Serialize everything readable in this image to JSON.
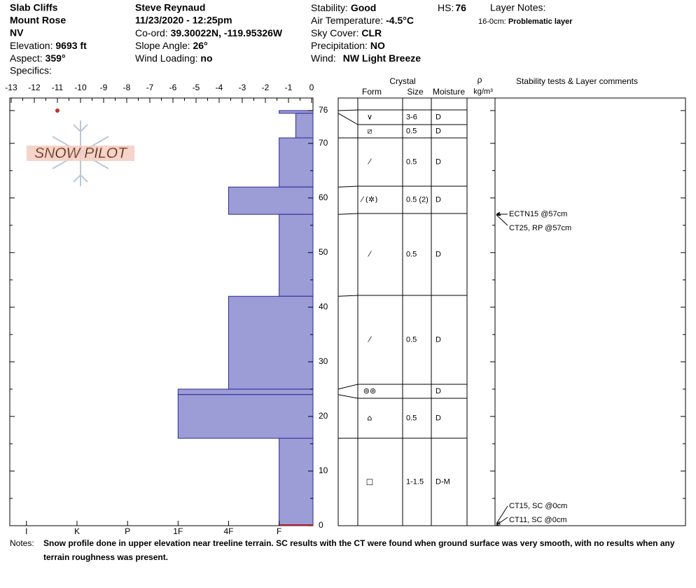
{
  "header": {
    "site": "Slab Cliffs",
    "range": "Mount Rose",
    "state": "NV",
    "elevation": {
      "label": "Elevation:",
      "value": "9693 ft"
    },
    "aspect": {
      "label": "Aspect:",
      "value": "359°"
    },
    "specifics": {
      "label": "Specifics:"
    },
    "observer": "Steve Reynaud",
    "datetime": "11/23/2020 - 12:25pm",
    "coord": {
      "label": "Co-ord:",
      "value": "39.30022N, -119.95326W"
    },
    "slope": {
      "label": "Slope Angle:",
      "value": "26°"
    },
    "wind_loading": {
      "label": "Wind Loading:",
      "value": "no"
    },
    "stability": {
      "label": "Stability:",
      "value": "Good"
    },
    "air_temp": {
      "label": "Air Temperature:",
      "value": "-4.5°C"
    },
    "sky": {
      "label": "Sky Cover:",
      "value": "CLR"
    },
    "precip": {
      "label": "Precipitation:",
      "value": "NO"
    },
    "wind": {
      "label": "Wind:",
      "value": "NW Light Breeze"
    },
    "hs": {
      "label": "HS:",
      "value": 76
    },
    "layer_notes": {
      "label": "Layer Notes:",
      "range": "16-0cm:",
      "text": "Problematic layer"
    }
  },
  "logo": "SNOW PILOT",
  "profile": {
    "temp_lim": [
      -13.06,
      0.06
    ],
    "temp_ticks": [
      -13,
      -12,
      -11,
      -10,
      -9,
      -8,
      -7,
      -6,
      -5,
      -4,
      -3,
      -2,
      -1,
      0
    ],
    "hardness_lim": [
      0.33,
      6.33
    ],
    "hardness_ticks": [
      {
        "value": 1,
        "label": "F"
      },
      {
        "value": 2,
        "label": "4F"
      },
      {
        "value": 3,
        "label": "1F"
      },
      {
        "value": 4,
        "label": "P"
      },
      {
        "value": 5,
        "label": "K"
      },
      {
        "value": 6,
        "label": "I"
      }
    ],
    "height_lim": [
      0,
      78.3
    ],
    "height_ticks": [
      0,
      10,
      20,
      30,
      40,
      50,
      60,
      70,
      76
    ],
    "temperatures": [
      {
        "height": 76,
        "temp": -11
      }
    ],
    "layers": [
      {
        "top": 76,
        "bottom": 75.5,
        "hardness": 1,
        "form": "∨",
        "size": "3-6",
        "moisture": "D"
      },
      {
        "top": 75.5,
        "bottom": 71,
        "hardness": 0.67,
        "form": "⧄",
        "size": "0.5",
        "moisture": "D"
      },
      {
        "top": 71,
        "bottom": 62,
        "hardness": 1,
        "form": "⁄",
        "size": "0.5",
        "moisture": "D"
      },
      {
        "top": 62,
        "bottom": 57,
        "hardness": 2,
        "form": "⁄ (✲)",
        "size": "0.5 (2)",
        "moisture": "D"
      },
      {
        "top": 57,
        "bottom": 42,
        "hardness": 1,
        "form": "⁄",
        "size": "0.5",
        "moisture": "D"
      },
      {
        "top": 42,
        "bottom": 25,
        "hardness": 2,
        "form": "⁄",
        "size": "0.5",
        "moisture": "D"
      },
      {
        "top": 25,
        "bottom": 24,
        "hardness": 3,
        "form": "⊚⊚",
        "moisture": "D"
      },
      {
        "top": 24,
        "bottom": 16,
        "hardness": 3,
        "form": "⌂",
        "size": "0.5",
        "moisture": "D"
      },
      {
        "top": 16,
        "bottom": 0,
        "hardness": 1,
        "form": "□",
        "size": "1-1.5",
        "moisture": "D-M"
      }
    ]
  },
  "table": {
    "crystal": "Crystal",
    "form": "Form",
    "size": "Size",
    "moisture": "Moisture",
    "rho": "ρ",
    "density_unit": "kg/m³",
    "comments": "Stability tests & Layer comments"
  },
  "tests": [
    "ECTN15 @57cm",
    "CT25, RP @57cm",
    "CT15, SC @0cm",
    "CT11, SC @0cm"
  ],
  "notes": {
    "label": "Notes:",
    "text": "Snow profile done in upper elevation near treeline terrain.  SC results with the CT were found when ground surface was very smooth, with no results when any terrain roughness was present."
  }
}
